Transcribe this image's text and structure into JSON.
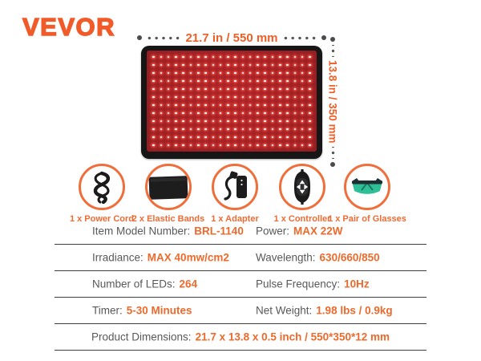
{
  "brand": {
    "logo": "VEVOR"
  },
  "colors": {
    "accent_orange": "#f15a29",
    "value_orange": "#ed6a2d",
    "label_gray": "#58595b",
    "pad_red": "#9d2126",
    "glasses_teal": "#2fbf97"
  },
  "pad": {
    "width_label": "21.7 in / 550 mm",
    "height_label": "13.8 in / 350 mm",
    "led_grid": {
      "rows": 12,
      "cols": 22
    }
  },
  "accessories": [
    {
      "label": "1 x Power Cord"
    },
    {
      "label": "2 x Elastic Bands"
    },
    {
      "label": "1 x Adapter"
    },
    {
      "label": "1 x Controller"
    },
    {
      "label": "1 x Pair of Glasses"
    }
  ],
  "specs": {
    "rows": [
      {
        "cells": [
          {
            "label": "Item Model Number:",
            "value": "BRL-1140"
          },
          {
            "label": "Power:",
            "value": "MAX 22W"
          }
        ]
      },
      {
        "cells": [
          {
            "label": "Irradiance:",
            "value": "MAX 40mw/cm2"
          },
          {
            "label": "Wavelength:",
            "value": "630/660/850"
          }
        ]
      },
      {
        "cells": [
          {
            "label": "Number of LEDs:",
            "value": "264"
          },
          {
            "label": "Pulse Frequency:",
            "value": "10Hz"
          }
        ]
      },
      {
        "cells": [
          {
            "label": "Timer:",
            "value": "5-30 Minutes"
          },
          {
            "label": "Net Weight:",
            "value": "1.98 lbs / 0.9kg"
          }
        ]
      },
      {
        "cells": [
          {
            "label": "Product Dimensions:",
            "value": "21.7 x 13.8 x 0.5 inch / 550*350*12 mm"
          }
        ]
      }
    ]
  }
}
